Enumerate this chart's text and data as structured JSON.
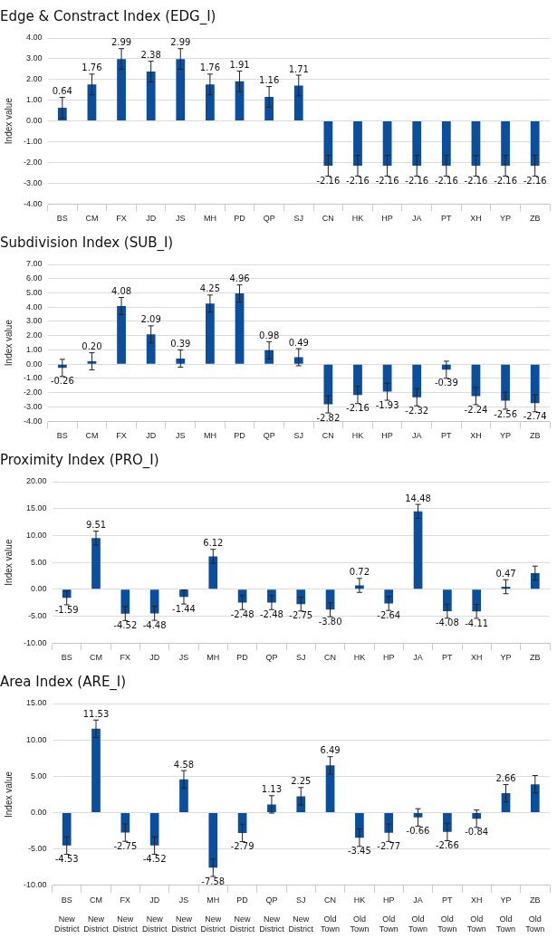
{
  "chart_data": [
    {
      "type": "bar",
      "title": "Edge & Constract Index (EDG_I)",
      "ylabel": "Index value",
      "categories": [
        "BS",
        "CM",
        "FX",
        "JD",
        "JS",
        "MH",
        "PD",
        "QP",
        "SJ",
        "CN",
        "HK",
        "HP",
        "JA",
        "PT",
        "XH",
        "YP",
        "ZB"
      ],
      "values": [
        0.64,
        1.76,
        2.99,
        2.38,
        2.99,
        1.76,
        1.91,
        1.16,
        1.71,
        -2.16,
        -2.16,
        -2.16,
        -2.16,
        -2.16,
        -2.16,
        -2.16,
        -2.16
      ],
      "errors": [
        0.5,
        0.5,
        0.5,
        0.5,
        0.5,
        0.5,
        0.5,
        0.5,
        0.5,
        0.5,
        0.5,
        0.5,
        0.5,
        0.5,
        0.5,
        0.5,
        0.5
      ],
      "color": "#0b4f9c",
      "data_labels": true,
      "grid": "y",
      "legend": false,
      "ylim": [
        -4,
        4
      ],
      "yticks": [
        {
          "value": -4,
          "label": "-4.00"
        },
        {
          "value": -3,
          "label": "-3.00"
        },
        {
          "value": -2,
          "label": "-2.00"
        },
        {
          "value": -1,
          "label": "-1.00"
        },
        {
          "value": 0,
          "label": "0.00"
        },
        {
          "value": 1,
          "label": "1.00"
        },
        {
          "value": 2,
          "label": "2.00"
        },
        {
          "value": 3,
          "label": "3.00"
        },
        {
          "value": 4,
          "label": "4.00"
        }
      ]
    },
    {
      "type": "bar",
      "title": "Subdivision Index (SUB_I)",
      "ylabel": "Index value",
      "categories": [
        "BS",
        "CM",
        "FX",
        "JD",
        "JS",
        "MH",
        "PD",
        "QP",
        "SJ",
        "CN",
        "HK",
        "HP",
        "JA",
        "PT",
        "XH",
        "YP",
        "ZB"
      ],
      "values": [
        -0.26,
        0.2,
        4.08,
        2.09,
        0.39,
        4.25,
        4.96,
        0.98,
        0.49,
        -2.82,
        -2.16,
        -1.93,
        -2.32,
        -0.39,
        -2.24,
        -2.56,
        -2.74
      ],
      "errors": [
        0.6,
        0.6,
        0.6,
        0.6,
        0.6,
        0.6,
        0.6,
        0.6,
        0.6,
        0.6,
        0.6,
        0.6,
        0.6,
        0.6,
        0.6,
        0.6,
        0.6
      ],
      "color": "#0b4f9c",
      "value_labels": [
        "-0.26",
        "0.20",
        "4.08",
        "2.09",
        "0.39",
        "4.25",
        "4.96",
        "0.98",
        "0.49",
        "-2.82",
        "-2.16",
        "-1.93",
        "-2.32",
        "-0.39",
        "-2.24",
        "-2.56",
        "-2.74"
      ],
      "grid": "y",
      "legend": false,
      "ylim": [
        -4,
        7
      ],
      "yticks": [
        {
          "value": -4,
          "label": "-4.00"
        },
        {
          "value": -3,
          "label": "-3.00"
        },
        {
          "value": -2,
          "label": "-2.00"
        },
        {
          "value": -1,
          "label": "-1.00"
        },
        {
          "value": 0,
          "label": "0.00"
        },
        {
          "value": 1,
          "label": "1.00"
        },
        {
          "value": 2,
          "label": "2.00"
        },
        {
          "value": 3,
          "label": "3.00"
        },
        {
          "value": 4,
          "label": "4.00"
        },
        {
          "value": 5,
          "label": "5.00"
        },
        {
          "value": 6,
          "label": "6.00"
        },
        {
          "value": 7,
          "label": "7.00"
        }
      ]
    },
    {
      "type": "bar",
      "title": "Proximity Index (PRO_I)",
      "ylabel": "Index value",
      "categories": [
        "BS",
        "CM",
        "FX",
        "JD",
        "JS",
        "MH",
        "PD",
        "QP",
        "SJ",
        "CN",
        "HK",
        "HP",
        "JA",
        "PT",
        "XH",
        "YP",
        "ZB"
      ],
      "values": [
        -1.59,
        9.51,
        -4.52,
        -4.48,
        -1.44,
        6.12,
        -2.48,
        -2.48,
        -2.75,
        -3.8,
        0.72,
        -2.64,
        14.48,
        -4.08,
        -4.11,
        0.47,
        3.0
      ],
      "errors": [
        1.3,
        1.3,
        1.3,
        1.3,
        1.3,
        1.3,
        1.3,
        1.3,
        1.3,
        1.3,
        1.3,
        1.3,
        1.3,
        1.3,
        1.3,
        1.3,
        1.3
      ],
      "color": "#0b4f9c",
      "value_labels": [
        "-1.59",
        "9.51",
        "-4.52",
        "-4.48",
        "-1.44",
        "6.12",
        "-2.48",
        "-2.48",
        "-2.75",
        "-3.80",
        "0.72",
        "-2.64",
        "14.48",
        "-4.08",
        "-4.11",
        "0.47",
        null
      ],
      "grid": "y",
      "legend": false,
      "ylim": [
        -10,
        20
      ],
      "yticks": [
        {
          "value": -10,
          "label": "-10.00"
        },
        {
          "value": -5,
          "label": "-5.00"
        },
        {
          "value": 0,
          "label": "0.00"
        },
        {
          "value": 5,
          "label": "5.00"
        },
        {
          "value": 10,
          "label": "10.00"
        },
        {
          "value": 15,
          "label": "15.00"
        },
        {
          "value": 20,
          "label": "20.00"
        }
      ]
    },
    {
      "type": "bar",
      "title": "Area Index (ARE_I)",
      "ylabel": "Index value",
      "categories": [
        "BS\nNew District",
        "CM\nNew District",
        "FX\nNew District",
        "JD\nNew District",
        "JS\nNew District",
        "MH\nNew District",
        "PD\nNew District",
        "QP\nNew District",
        "SJ\nNew District",
        "CN\nOld Town",
        "HK\nOld Town",
        "HP\nOld Town",
        "JA\nOld Town",
        "PT\nOld Town",
        "XH\nOld Town",
        "YP\nOld Town",
        "ZB\nOld Town"
      ],
      "values": [
        -4.53,
        11.53,
        -2.75,
        -4.52,
        4.58,
        -7.58,
        -2.79,
        1.13,
        2.25,
        6.49,
        -3.45,
        -2.77,
        -0.66,
        -2.66,
        -0.84,
        2.66,
        3.9
      ],
      "errors": [
        1.2,
        1.2,
        1.2,
        1.2,
        1.2,
        1.2,
        1.2,
        1.2,
        1.2,
        1.2,
        1.2,
        1.2,
        1.2,
        1.2,
        1.2,
        1.2,
        1.2
      ],
      "color": "#0b4f9c",
      "value_labels": [
        "-4.53",
        "11.53",
        "-2.75",
        "-4.52",
        "4.58",
        "-7.58",
        "-2.79",
        "1.13",
        "2.25",
        "6.49",
        "-3.45",
        "-2.77",
        "-0.66",
        "-2.66",
        "-0.84",
        "2.66",
        null
      ],
      "grid": "y",
      "legend": false,
      "ylim": [
        -10,
        15
      ],
      "yticks": [
        {
          "value": -10,
          "label": "-10.00"
        },
        {
          "value": -5,
          "label": "-5.00"
        },
        {
          "value": 0,
          "label": "0.00"
        },
        {
          "value": 5,
          "label": "5.00"
        },
        {
          "value": 10,
          "label": "10.00"
        },
        {
          "value": 15,
          "label": "15.00"
        }
      ]
    }
  ]
}
